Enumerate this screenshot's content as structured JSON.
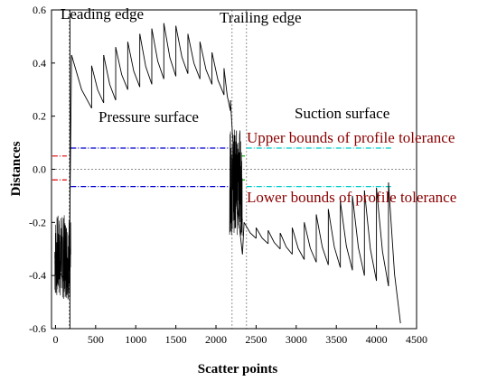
{
  "chart_data": {
    "type": "line",
    "title": "",
    "xlabel": "Scatter points",
    "ylabel": "Distances",
    "xlim": [
      -50,
      4500
    ],
    "ylim": [
      -0.6,
      0.6
    ],
    "xticks": [
      0,
      500,
      1000,
      1500,
      2000,
      2500,
      3000,
      3500,
      4000,
      4500
    ],
    "yticks": [
      -0.6,
      -0.4,
      -0.2,
      0.0,
      0.2,
      0.4,
      0.6
    ],
    "xtick_labels": [
      "0",
      "500",
      "1000",
      "1500",
      "2000",
      "2500",
      "3000",
      "3500",
      "4000",
      "4500"
    ],
    "ytick_labels": [
      "-0.6",
      "-0.4",
      "-0.2",
      "0.0",
      "0.2",
      "0.4",
      "0.6"
    ],
    "grid": false,
    "zero_line": true,
    "series": [
      {
        "color": "#000000",
        "segments": [
          [
            [
              -10,
              -0.35
            ],
            [
              170,
              -0.43
            ]
          ],
          [
            [
              200,
              0.43
            ],
            [
              450,
              0.23
            ]
          ],
          [
            [
              450,
              0.39
            ],
            [
              600,
              0.25
            ]
          ],
          [
            [
              600,
              0.43
            ],
            [
              750,
              0.26
            ]
          ],
          [
            [
              750,
              0.46
            ],
            [
              900,
              0.3
            ]
          ],
          [
            [
              900,
              0.48
            ],
            [
              1050,
              0.31
            ]
          ],
          [
            [
              1050,
              0.51
            ],
            [
              1200,
              0.32
            ]
          ],
          [
            [
              1200,
              0.53
            ],
            [
              1350,
              0.34
            ]
          ],
          [
            [
              1350,
              0.55
            ],
            [
              1500,
              0.35
            ]
          ],
          [
            [
              1500,
              0.54
            ],
            [
              1650,
              0.36
            ]
          ],
          [
            [
              1650,
              0.51
            ],
            [
              1800,
              0.34
            ]
          ],
          [
            [
              1800,
              0.48
            ],
            [
              1950,
              0.32
            ]
          ],
          [
            [
              1950,
              0.44
            ],
            [
              2100,
              0.28
            ]
          ],
          [
            [
              2100,
              0.38
            ],
            [
              2180,
              0.22
            ]
          ],
          [
            [
              2180,
              0.26
            ],
            [
              2330,
              -0.32
            ]
          ],
          [
            [
              2350,
              -0.2
            ],
            [
              2500,
              -0.26
            ]
          ],
          [
            [
              2500,
              -0.22
            ],
            [
              2650,
              -0.28
            ]
          ],
          [
            [
              2650,
              -0.23
            ],
            [
              2800,
              -0.3
            ]
          ],
          [
            [
              2800,
              -0.24
            ],
            [
              2950,
              -0.32
            ]
          ],
          [
            [
              2950,
              -0.22
            ],
            [
              3100,
              -0.34
            ]
          ],
          [
            [
              3100,
              -0.2
            ],
            [
              3250,
              -0.35
            ]
          ],
          [
            [
              3250,
              -0.17
            ],
            [
              3400,
              -0.36
            ]
          ],
          [
            [
              3400,
              -0.15
            ],
            [
              3550,
              -0.37
            ]
          ],
          [
            [
              3550,
              -0.12
            ],
            [
              3700,
              -0.38
            ]
          ],
          [
            [
              3700,
              -0.1
            ],
            [
              3850,
              -0.4
            ]
          ],
          [
            [
              3850,
              -0.08
            ],
            [
              4000,
              -0.42
            ]
          ],
          [
            [
              4000,
              -0.07
            ],
            [
              4150,
              -0.44
            ]
          ],
          [
            [
              4150,
              -0.05
            ],
            [
              4300,
              -0.58
            ]
          ]
        ]
      }
    ],
    "noise_regions": [
      {
        "x_from": -10,
        "x_to": 190,
        "y_center": -0.33,
        "amplitude": 0.16
      },
      {
        "x_from": 2170,
        "x_to": 2330,
        "y_center": -0.05,
        "amplitude": 0.2
      }
    ],
    "vertical_lines": [
      {
        "x": 170,
        "color": "#888888",
        "style": "dotted"
      },
      {
        "x": 180,
        "color": "#000000",
        "style": "solid"
      },
      {
        "x": 2200,
        "color": "#888888",
        "style": "dotted"
      },
      {
        "x": 2380,
        "color": "#888888",
        "style": "dotted"
      }
    ],
    "tolerance_lines": [
      {
        "x_from": -40,
        "x_to": 140,
        "y": 0.05,
        "color": "#e00000"
      },
      {
        "x_from": -40,
        "x_to": 140,
        "y": -0.04,
        "color": "#e00000"
      },
      {
        "x_from": 190,
        "x_to": 2180,
        "y": 0.08,
        "color": "#0000cc"
      },
      {
        "x_from": 190,
        "x_to": 2180,
        "y": -0.065,
        "color": "#0000cc"
      },
      {
        "x_from": 2200,
        "x_to": 2360,
        "y": 0.05,
        "color": "#00aa00"
      },
      {
        "x_from": 2200,
        "x_to": 2360,
        "y": -0.04,
        "color": "#00aa00"
      },
      {
        "x_from": 2380,
        "x_to": 4200,
        "y": 0.08,
        "color": "#00cccc"
      },
      {
        "x_from": 2380,
        "x_to": 4200,
        "y": -0.065,
        "color": "#00cccc"
      }
    ],
    "annotations": {
      "leading_edge": "Leading edge",
      "trailing_edge": "Trailing edge",
      "pressure_surface": "Pressure surface",
      "suction_surface": "Suction surface",
      "upper_bounds": "Upper bounds of profile tolerance",
      "lower_bounds": "Lower bounds of profile tolerance"
    }
  }
}
